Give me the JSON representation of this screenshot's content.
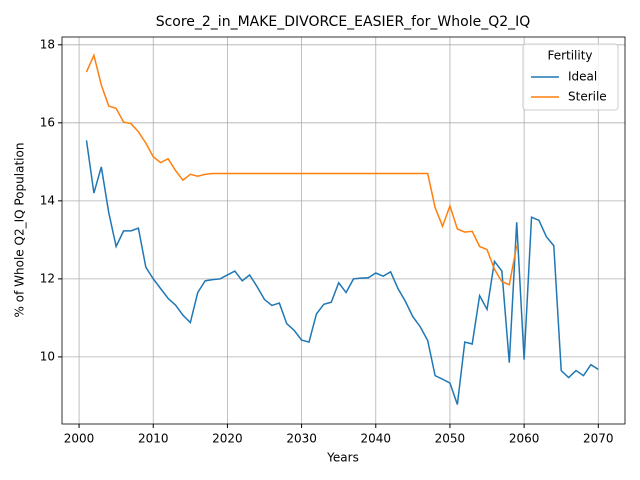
{
  "chart_data": {
    "type": "line",
    "title": "Score_2_in_MAKE_DIVORCE_EASIER_for_Whole_Q2_IQ",
    "xlabel": "Years",
    "ylabel": "% of Whole Q2_IQ Population",
    "x": [
      2001,
      2002,
      2003,
      2004,
      2005,
      2006,
      2007,
      2008,
      2009,
      2010,
      2011,
      2012,
      2013,
      2014,
      2015,
      2016,
      2017,
      2018,
      2019,
      2020,
      2021,
      2022,
      2023,
      2024,
      2025,
      2026,
      2027,
      2028,
      2029,
      2030,
      2031,
      2032,
      2033,
      2034,
      2035,
      2036,
      2037,
      2038,
      2039,
      2040,
      2041,
      2042,
      2043,
      2044,
      2045,
      2046,
      2047,
      2048,
      2049,
      2050,
      2051,
      2052,
      2053,
      2054,
      2055,
      2056,
      2057,
      2058,
      2059,
      2060,
      2061,
      2062,
      2063,
      2064,
      2065,
      2066,
      2067,
      2068,
      2069,
      2070
    ],
    "series": [
      {
        "name": "Ideal",
        "color": "#1f77b4",
        "values": [
          15.55,
          14.2,
          14.87,
          13.7,
          12.83,
          13.23,
          13.23,
          13.3,
          12.3,
          12.0,
          11.75,
          11.5,
          11.33,
          11.07,
          10.88,
          11.65,
          11.95,
          11.98,
          12.0,
          12.1,
          12.2,
          11.95,
          12.1,
          11.8,
          11.47,
          11.32,
          11.38,
          10.85,
          10.68,
          10.43,
          10.38,
          11.1,
          11.35,
          11.4,
          11.9,
          11.65,
          12.0,
          12.02,
          12.03,
          12.15,
          12.07,
          12.18,
          11.75,
          11.42,
          11.03,
          10.77,
          10.42,
          9.52,
          9.43,
          9.33,
          8.78,
          10.38,
          10.33,
          11.57,
          11.22,
          12.45,
          12.2,
          9.85,
          13.45,
          9.93,
          13.58,
          13.5,
          13.08,
          12.85,
          9.65,
          9.47,
          9.65,
          9.52,
          9.8,
          9.68
        ]
      },
      {
        "name": "Sterile",
        "color": "#ff7f0e",
        "values": [
          17.3,
          17.73,
          16.97,
          16.43,
          16.37,
          16.02,
          15.98,
          15.77,
          15.48,
          15.13,
          14.98,
          15.08,
          14.78,
          14.53,
          14.68,
          14.63,
          14.68,
          14.7,
          14.7,
          14.7,
          14.7,
          14.7,
          14.7,
          14.7,
          14.7,
          14.7,
          14.7,
          14.7,
          14.7,
          14.7,
          14.7,
          14.7,
          14.7,
          14.7,
          14.7,
          14.7,
          14.7,
          14.7,
          14.7,
          14.7,
          14.7,
          14.7,
          14.7,
          14.7,
          14.7,
          14.7,
          14.7,
          13.83,
          13.35,
          13.87,
          13.28,
          13.2,
          13.22,
          12.83,
          12.75,
          12.25,
          11.93,
          11.85,
          12.85,
          null,
          null,
          null,
          null,
          null,
          null,
          null,
          null,
          null,
          null,
          null
        ]
      }
    ],
    "xlim": [
      1997.7,
      2073.6
    ],
    "xticks": [
      2000,
      2010,
      2020,
      2030,
      2040,
      2050,
      2060,
      2070
    ],
    "ylim": [
      8.28,
      18.2
    ],
    "yticks": [
      10,
      12,
      14,
      16,
      18
    ],
    "grid": true,
    "legend_title": "Fertility",
    "legend_position": "upper right"
  }
}
